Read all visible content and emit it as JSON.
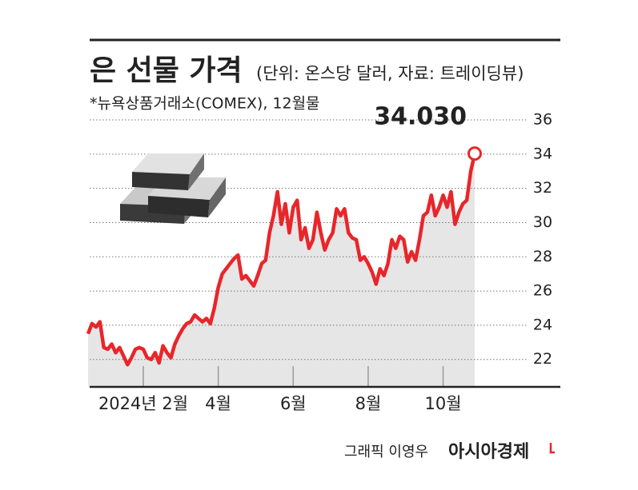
{
  "chart_data": {
    "type": "line",
    "title": "은 선물 가격",
    "subtitle": "(단위: 온스당 달러, 자료: 트레이딩뷰)",
    "note": "*뉴욕상품거래소(COMEX), 12월물",
    "credit": "그래픽 이영우",
    "source": "아시아경제",
    "color": "#e8262a",
    "area_color": "#e6e6e6",
    "grid": true,
    "ylim": [
      20.4,
      36
    ],
    "yticks": [
      22,
      24,
      26,
      28,
      30,
      32,
      34,
      36
    ],
    "categories": [
      null,
      null,
      null,
      null,
      null,
      null,
      null,
      null,
      null,
      null,
      null,
      null,
      null,
      null,
      "2024년 2월",
      null,
      null,
      null,
      null,
      null,
      null,
      null,
      null,
      null,
      null,
      null,
      null,
      null,
      null,
      null,
      null,
      null,
      null,
      "4월",
      null,
      null,
      null,
      null,
      null,
      null,
      null,
      null,
      null,
      null,
      null,
      null,
      null,
      null,
      null,
      null,
      null,
      null,
      "6월",
      null,
      null,
      null,
      null,
      null,
      null,
      null,
      null,
      null,
      null,
      null,
      null,
      null,
      null,
      null,
      null,
      null,
      null,
      "8월",
      null,
      null,
      null,
      null,
      null,
      null,
      null,
      null,
      null,
      null,
      null,
      null,
      null,
      null,
      null,
      null,
      null,
      null,
      "10월",
      null,
      null,
      null,
      null,
      null,
      null,
      null,
      null
    ],
    "values": [
      23.5,
      24.1,
      23.9,
      24.2,
      22.7,
      22.6,
      22.9,
      22.4,
      22.7,
      22.2,
      21.7,
      22.1,
      22.6,
      22.7,
      22.6,
      22.1,
      22.0,
      22.4,
      21.8,
      22.8,
      22.4,
      22.1,
      22.9,
      23.4,
      23.8,
      24.1,
      24.2,
      24.6,
      24.4,
      24.2,
      24.4,
      24.1,
      25.0,
      26.2,
      27.0,
      27.3,
      27.6,
      27.9,
      28.1,
      26.7,
      26.9,
      26.6,
      26.3,
      26.9,
      27.6,
      27.8,
      29.4,
      30.4,
      31.8,
      29.9,
      31.1,
      29.4,
      30.9,
      31.3,
      29.0,
      29.7,
      28.5,
      29.0,
      30.6,
      29.4,
      28.4,
      29.0,
      29.4,
      30.8,
      30.4,
      30.8,
      29.4,
      29.1,
      29.0,
      27.8,
      28.0,
      27.6,
      27.1,
      26.4,
      27.3,
      26.9,
      27.6,
      29.0,
      28.5,
      29.2,
      29.0,
      27.7,
      28.3,
      27.8,
      29.0,
      30.4,
      30.6,
      31.6,
      30.4,
      30.9,
      31.6,
      30.9,
      31.8,
      29.9,
      30.6,
      31.1,
      31.3,
      33.0,
      34.03
    ],
    "value_labels": [
      null,
      null,
      null,
      null,
      null,
      null,
      null,
      null,
      null,
      null,
      null,
      null,
      null,
      null,
      null,
      null,
      null,
      null,
      null,
      null,
      null,
      null,
      null,
      null,
      null,
      null,
      null,
      null,
      null,
      null,
      null,
      null,
      null,
      null,
      null,
      null,
      null,
      null,
      null,
      null,
      null,
      null,
      null,
      null,
      null,
      null,
      null,
      null,
      null,
      null,
      null,
      null,
      null,
      null,
      null,
      null,
      null,
      null,
      null,
      null,
      null,
      null,
      null,
      null,
      null,
      null,
      null,
      null,
      null,
      null,
      null,
      null,
      null,
      null,
      null,
      null,
      null,
      null,
      null,
      null,
      null,
      null,
      null,
      null,
      null,
      null,
      null,
      null,
      null,
      null,
      null,
      null,
      null,
      null,
      null,
      null,
      null,
      null,
      "34.030"
    ]
  }
}
